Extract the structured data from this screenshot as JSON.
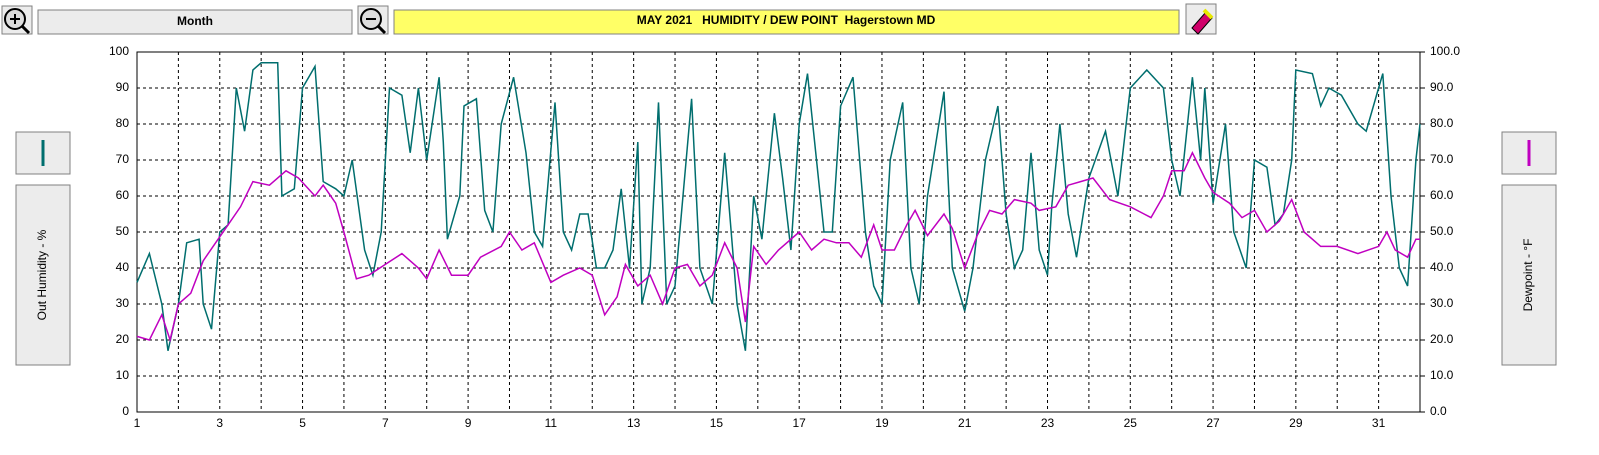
{
  "chart_data": {
    "type": "line",
    "title": "MAY 2021   HUMIDITY / DEW POINT  Hagerstown MD",
    "range_button": "Month",
    "xlim": [
      1,
      32
    ],
    "xticks": [
      1,
      3,
      5,
      7,
      9,
      11,
      13,
      15,
      17,
      19,
      21,
      23,
      25,
      27,
      29,
      31
    ],
    "xminor_ticks": [
      2,
      4,
      6,
      8,
      10,
      12,
      14,
      16,
      18,
      20,
      22,
      24,
      26,
      28,
      30,
      32
    ],
    "ylim": [
      0,
      100
    ],
    "yticks": [
      0,
      10,
      20,
      30,
      40,
      50,
      60,
      70,
      80,
      90,
      100
    ],
    "y2lim": [
      0,
      100
    ],
    "y2ticks": [
      {
        "value": 0,
        "label": "0.0"
      },
      {
        "value": 10,
        "label": "10.0"
      },
      {
        "value": 20,
        "label": "20.0"
      },
      {
        "value": 30,
        "label": "30.0"
      },
      {
        "value": 40,
        "label": "40.0"
      },
      {
        "value": 50,
        "label": "50.0"
      },
      {
        "value": 60,
        "label": "60.0"
      },
      {
        "value": 70,
        "label": "70.0"
      },
      {
        "value": 80,
        "label": "80.0"
      },
      {
        "value": 90,
        "label": "90.0"
      },
      {
        "value": 100,
        "label": "100.0"
      }
    ],
    "grid": true,
    "series": [
      {
        "name": "Out Humidity - %",
        "color": "#006e6e",
        "x": [
          1.0,
          1.3,
          1.6,
          1.75,
          2.0,
          2.2,
          2.5,
          2.6,
          2.8,
          3.0,
          3.2,
          3.4,
          3.6,
          3.8,
          4.0,
          4.4,
          4.5,
          4.8,
          5.0,
          5.3,
          5.5,
          5.8,
          6.0,
          6.2,
          6.5,
          6.7,
          6.9,
          7.1,
          7.4,
          7.6,
          7.8,
          8.0,
          8.3,
          8.4,
          8.5,
          8.8,
          8.9,
          9.2,
          9.4,
          9.6,
          9.8,
          10.1,
          10.4,
          10.6,
          10.8,
          11.1,
          11.3,
          11.5,
          11.7,
          11.9,
          12.1,
          12.3,
          12.5,
          12.7,
          12.9,
          13.1,
          13.2,
          13.4,
          13.6,
          13.8,
          14.0,
          14.4,
          14.6,
          14.9,
          15.2,
          15.5,
          15.7,
          15.9,
          16.1,
          16.4,
          16.6,
          16.8,
          17.0,
          17.2,
          17.6,
          17.8,
          18.0,
          18.3,
          18.6,
          18.8,
          19.0,
          19.2,
          19.5,
          19.7,
          19.9,
          20.1,
          20.5,
          20.7,
          21.0,
          21.2,
          21.5,
          21.8,
          22.0,
          22.2,
          22.4,
          22.6,
          22.8,
          23.0,
          23.1,
          23.3,
          23.5,
          23.7,
          24.0,
          24.4,
          24.7,
          25.0,
          25.4,
          25.8,
          26.0,
          26.2,
          26.5,
          26.7,
          26.8,
          27.0,
          27.3,
          27.5,
          27.8,
          28.0,
          28.3,
          28.5,
          28.7,
          28.9,
          29.0,
          29.4,
          29.6,
          29.8,
          30.1,
          30.5,
          30.7,
          31.0,
          31.1,
          31.3,
          31.5,
          31.7,
          31.9,
          32.0
        ],
        "values": [
          36,
          44,
          30,
          17,
          30,
          47,
          48,
          30,
          23,
          50,
          52,
          90,
          78,
          95,
          97,
          97,
          60,
          62,
          90,
          96,
          64,
          62,
          60,
          70,
          45,
          38,
          50,
          90,
          88,
          72,
          90,
          70,
          93,
          75,
          48,
          60,
          85,
          87,
          56,
          50,
          80,
          93,
          72,
          50,
          46,
          86,
          50,
          45,
          55,
          55,
          40,
          40,
          45,
          62,
          40,
          75,
          30,
          40,
          86,
          30,
          35,
          87,
          40,
          30,
          72,
          30,
          17,
          60,
          48,
          83,
          65,
          45,
          80,
          94,
          50,
          50,
          85,
          93,
          50,
          35,
          30,
          70,
          86,
          40,
          30,
          60,
          89,
          40,
          28,
          40,
          70,
          85,
          55,
          40,
          45,
          72,
          45,
          38,
          57,
          80,
          55,
          43,
          65,
          78,
          60,
          90,
          95,
          90,
          70,
          60,
          93,
          70,
          90,
          58,
          80,
          50,
          40,
          70,
          68,
          52,
          55,
          70,
          95,
          94,
          85,
          90,
          88,
          80,
          78,
          90,
          94,
          60,
          40,
          35,
          70,
          80
        ]
      },
      {
        "name": "Dewpoint - °F",
        "color": "#c000c0",
        "axis": "y2",
        "x": [
          1.0,
          1.3,
          1.6,
          1.8,
          2.0,
          2.3,
          2.6,
          2.9,
          3.2,
          3.5,
          3.8,
          4.2,
          4.6,
          4.9,
          5.3,
          5.5,
          5.8,
          6.0,
          6.3,
          6.6,
          7.0,
          7.4,
          7.8,
          8.0,
          8.3,
          8.6,
          9.0,
          9.3,
          9.8,
          10.0,
          10.3,
          10.6,
          11.0,
          11.3,
          11.7,
          12.0,
          12.3,
          12.6,
          12.8,
          13.1,
          13.4,
          13.7,
          14.0,
          14.3,
          14.6,
          14.9,
          15.2,
          15.5,
          15.7,
          15.9,
          16.2,
          16.5,
          17.0,
          17.3,
          17.6,
          17.9,
          18.2,
          18.5,
          18.8,
          19.0,
          19.3,
          19.6,
          19.8,
          20.1,
          20.5,
          20.7,
          21.0,
          21.3,
          21.6,
          21.9,
          22.2,
          22.6,
          22.8,
          23.2,
          23.5,
          23.8,
          24.1,
          24.5,
          25.0,
          25.5,
          25.8,
          26.0,
          26.3,
          26.5,
          26.8,
          27.0,
          27.4,
          27.7,
          28.0,
          28.3,
          28.6,
          28.9,
          29.2,
          29.6,
          30.0,
          30.5,
          31.0,
          31.2,
          31.4,
          31.7,
          31.9,
          32.0
        ],
        "values": [
          21,
          20,
          27,
          20,
          30,
          33,
          42,
          47,
          52,
          57,
          64,
          63,
          67,
          65,
          60,
          63,
          58,
          50,
          37,
          38,
          41,
          44,
          40,
          37,
          45,
          38,
          38,
          43,
          46,
          50,
          45,
          47,
          36,
          38,
          40,
          38,
          27,
          32,
          41,
          35,
          38,
          30,
          40,
          41,
          35,
          38,
          47,
          40,
          25,
          46,
          41,
          45,
          50,
          45,
          48,
          47,
          47,
          43,
          52,
          45,
          45,
          52,
          56,
          49,
          55,
          51,
          40,
          49,
          56,
          55,
          59,
          58,
          56,
          57,
          63,
          64,
          65,
          59,
          57,
          54,
          60,
          67,
          67,
          72,
          65,
          61,
          58,
          54,
          56,
          50,
          53,
          59,
          50,
          46,
          46,
          44,
          46,
          50,
          45,
          43,
          48,
          48
        ]
      }
    ]
  }
}
